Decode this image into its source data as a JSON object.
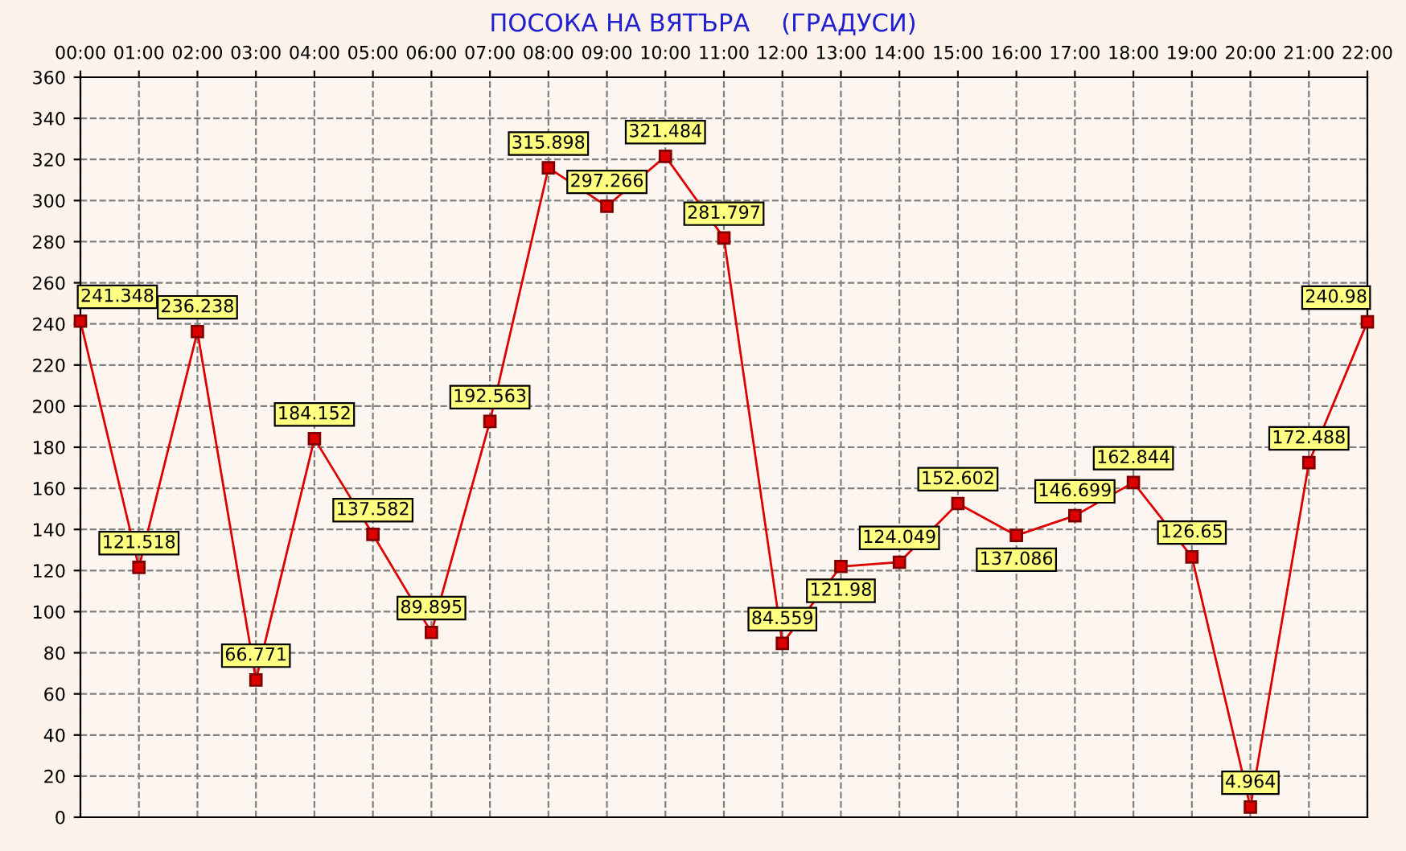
{
  "chart_data": {
    "type": "line",
    "title": "ПОСОКА НА ВЯТЪРА    (ГРАДУСИ)",
    "categories": [
      "00:00",
      "01:00",
      "02:00",
      "03:00",
      "04:00",
      "05:00",
      "06:00",
      "07:00",
      "08:00",
      "09:00",
      "10:00",
      "11:00",
      "12:00",
      "13:00",
      "14:00",
      "15:00",
      "16:00",
      "17:00",
      "18:00",
      "19:00",
      "20:00",
      "21:00",
      "22:00"
    ],
    "series": [
      {
        "color": "#dd0000",
        "values": [
          241.348,
          121.518,
          236.238,
          66.771,
          184.152,
          137.582,
          89.895,
          192.563,
          315.898,
          297.266,
          321.484,
          281.797,
          84.559,
          121.98,
          124.049,
          152.602,
          137.086,
          146.699,
          162.844,
          126.65,
          4.964,
          172.488,
          240.98
        ]
      }
    ],
    "ylim": [
      0,
      360
    ],
    "yticks": [
      0,
      20,
      40,
      60,
      80,
      100,
      120,
      140,
      160,
      180,
      200,
      220,
      240,
      260,
      280,
      300,
      320,
      340,
      360
    ],
    "grid": true,
    "marker": "square",
    "line_style": "solid",
    "data_labels": true
  }
}
